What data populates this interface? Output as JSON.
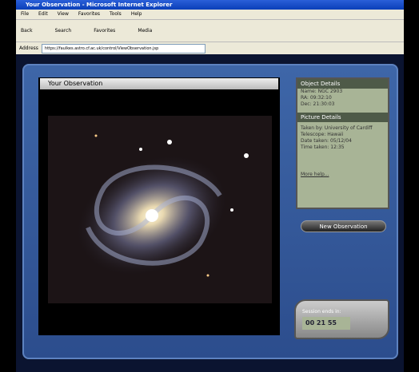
{
  "window": {
    "title": "Your Observation - Microsoft Internet Explorer"
  },
  "menu": [
    "File",
    "Edit",
    "View",
    "Favorites",
    "Tools",
    "Help"
  ],
  "toolbar": [
    "Back",
    "Search",
    "Favorites",
    "Media"
  ],
  "address": {
    "label": "Address",
    "url": "https://faulkes.astro.cf.ac.uk/control/ViewObservation.jsp"
  },
  "observation": {
    "title": "Your Observation"
  },
  "object_details": {
    "title": "Object Details",
    "lines": [
      "Name: NGC 2903",
      "RA: 09:32:10",
      "Dec: 21:30:03"
    ]
  },
  "picture_details": {
    "title": "Picture Details",
    "lines": [
      "Taken by: University of Cardiff",
      "Telescope: Hawaii",
      "Date taken: 05/12/04",
      "Time taken: 12:35"
    ],
    "link": "More help..."
  },
  "button": "New Observation",
  "session": {
    "label": "Session ends in:",
    "time": "00 21 55"
  }
}
